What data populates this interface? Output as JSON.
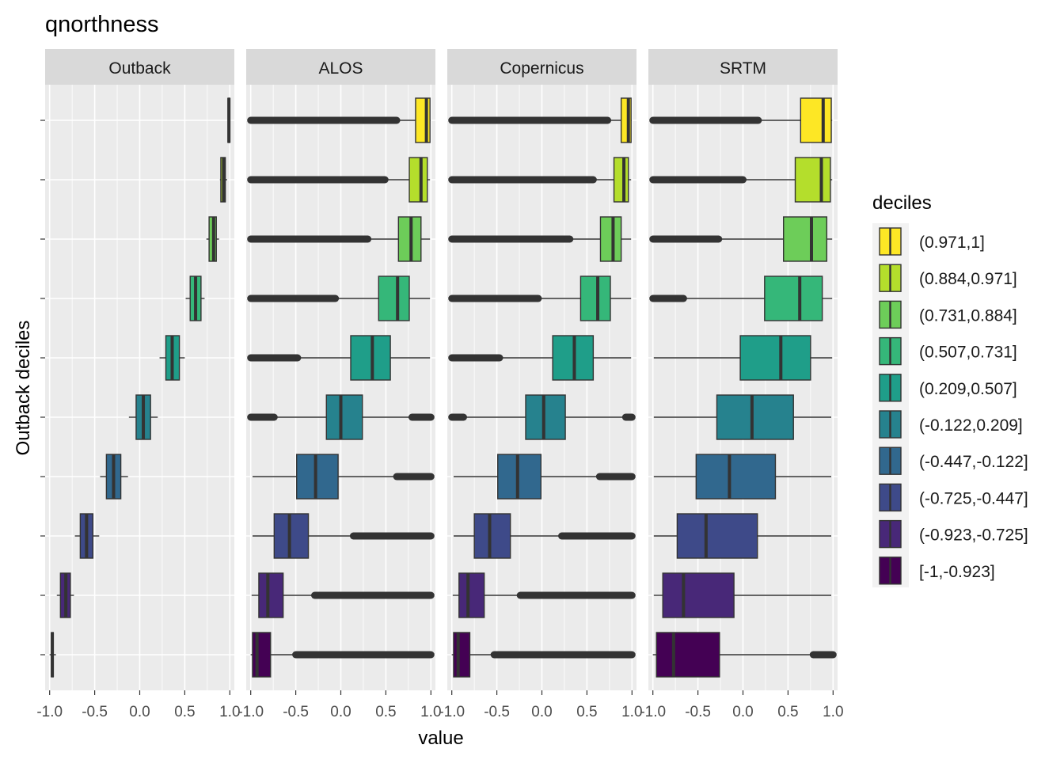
{
  "chart_data": {
    "type": "boxplot",
    "title": "qnorthness",
    "xlabel": "value",
    "ylabel": "Outback deciles",
    "xlim": [
      -1.05,
      1.05
    ],
    "x_ticks": [
      "-1.0",
      "-0.5",
      "0.0",
      "0.5",
      "1.0"
    ],
    "x_tick_values": [
      -1.0,
      -0.5,
      0.0,
      0.5,
      1.0
    ],
    "legend": {
      "title": "deciles",
      "position": "right",
      "entries": [
        {
          "label": "(0.971,1]",
          "color": "#FDE725"
        },
        {
          "label": "(0.884,0.971]",
          "color": "#B4DE2C"
        },
        {
          "label": "(0.731,0.884]",
          "color": "#6DCD59"
        },
        {
          "label": "(0.507,0.731]",
          "color": "#35B779"
        },
        {
          "label": "(0.209,0.507]",
          "color": "#1F9E89"
        },
        {
          "label": "(-0.122,0.209]",
          "color": "#26828E"
        },
        {
          "label": "(-0.447,-0.122]",
          "color": "#31688E"
        },
        {
          "label": "(-0.725,-0.447]",
          "color": "#3E4A89"
        },
        {
          "label": "(-0.923,-0.725]",
          "color": "#482878"
        },
        {
          "label": "[-1,-0.923]",
          "color": "#440154"
        }
      ]
    },
    "panels": [
      {
        "name": "Outback",
        "boxes": [
          {
            "decile": "[-1,-0.923]",
            "q1": -0.98,
            "median": -0.97,
            "q3": -0.96,
            "wmin": -1.0,
            "wmax": -0.93,
            "outliers": []
          },
          {
            "decile": "(-0.923,-0.725]",
            "q1": -0.88,
            "median": -0.82,
            "q3": -0.77,
            "wmin": -0.92,
            "wmax": -0.73,
            "outliers": []
          },
          {
            "decile": "(-0.725,-0.447]",
            "q1": -0.66,
            "median": -0.59,
            "q3": -0.52,
            "wmin": -0.72,
            "wmax": -0.45,
            "outliers": []
          },
          {
            "decile": "(-0.447,-0.122]",
            "q1": -0.37,
            "median": -0.29,
            "q3": -0.21,
            "wmin": -0.44,
            "wmax": -0.13,
            "outliers": []
          },
          {
            "decile": "(-0.122,0.209]",
            "q1": -0.04,
            "median": 0.04,
            "q3": 0.12,
            "wmin": -0.12,
            "wmax": 0.2,
            "outliers": []
          },
          {
            "decile": "(0.209,0.507]",
            "q1": 0.29,
            "median": 0.36,
            "q3": 0.44,
            "wmin": 0.22,
            "wmax": 0.5,
            "outliers": []
          },
          {
            "decile": "(0.507,0.731]",
            "q1": 0.56,
            "median": 0.62,
            "q3": 0.68,
            "wmin": 0.51,
            "wmax": 0.72,
            "outliers": []
          },
          {
            "decile": "(0.731,0.884]",
            "q1": 0.77,
            "median": 0.82,
            "q3": 0.85,
            "wmin": 0.74,
            "wmax": 0.88,
            "outliers": []
          },
          {
            "decile": "(0.884,0.971]",
            "q1": 0.9,
            "median": 0.93,
            "q3": 0.95,
            "wmin": 0.89,
            "wmax": 0.97,
            "outliers": []
          },
          {
            "decile": "(0.971,1]",
            "q1": 0.98,
            "median": 0.99,
            "q3": 1.0,
            "wmin": 0.975,
            "wmax": 1.0,
            "outliers": []
          }
        ]
      },
      {
        "name": "ALOS",
        "boxes": [
          {
            "decile": "[-1,-0.923]",
            "q1": -0.98,
            "median": -0.93,
            "q3": -0.78,
            "wmin": -1.0,
            "wmax": -0.5,
            "outliers": [
              [
                -0.5,
                1.0
              ]
            ]
          },
          {
            "decile": "(-0.923,-0.725]",
            "q1": -0.91,
            "median": -0.81,
            "q3": -0.64,
            "wmin": -0.99,
            "wmax": -0.29,
            "outliers": [
              [
                -0.29,
                1.0
              ]
            ]
          },
          {
            "decile": "(-0.725,-0.447]",
            "q1": -0.74,
            "median": -0.57,
            "q3": -0.36,
            "wmin": -0.98,
            "wmax": 0.14,
            "outliers": [
              [
                0.14,
                1.0
              ]
            ]
          },
          {
            "decile": "(-0.447,-0.122]",
            "q1": -0.49,
            "median": -0.28,
            "q3": -0.03,
            "wmin": -0.98,
            "wmax": 0.62,
            "outliers": [
              [
                0.62,
                1.0
              ]
            ]
          },
          {
            "decile": "(-0.122,0.209]",
            "q1": -0.16,
            "median": 0.0,
            "q3": 0.24,
            "wmin": -0.74,
            "wmax": 0.79,
            "outliers": [
              [
                -1.0,
                -0.74
              ],
              [
                0.79,
                1.0
              ]
            ]
          },
          {
            "decile": "(0.209,0.507]",
            "q1": 0.11,
            "median": 0.35,
            "q3": 0.55,
            "wmin": -0.48,
            "wmax": 0.99,
            "outliers": [
              [
                -1.0,
                -0.48
              ]
            ]
          },
          {
            "decile": "(0.507,0.731]",
            "q1": 0.42,
            "median": 0.63,
            "q3": 0.76,
            "wmin": -0.06,
            "wmax": 0.99,
            "outliers": [
              [
                -1.0,
                -0.06
              ]
            ]
          },
          {
            "decile": "(0.731,0.884]",
            "q1": 0.64,
            "median": 0.78,
            "q3": 0.89,
            "wmin": 0.3,
            "wmax": 0.99,
            "outliers": [
              [
                -1.0,
                0.3
              ]
            ]
          },
          {
            "decile": "(0.884,0.971]",
            "q1": 0.76,
            "median": 0.89,
            "q3": 0.96,
            "wmin": 0.49,
            "wmax": 0.99,
            "outliers": [
              [
                -1.0,
                0.49
              ]
            ]
          },
          {
            "decile": "(0.971,1]",
            "q1": 0.83,
            "median": 0.95,
            "q3": 0.99,
            "wmin": 0.62,
            "wmax": 0.995,
            "outliers": [
              [
                -1.0,
                0.62
              ]
            ]
          }
        ]
      },
      {
        "name": "Copernicus",
        "boxes": [
          {
            "decile": "[-1,-0.923]",
            "q1": -0.98,
            "median": -0.93,
            "q3": -0.8,
            "wmin": -1.0,
            "wmax": -0.53,
            "outliers": [
              [
                -0.53,
                1.0
              ]
            ]
          },
          {
            "decile": "(-0.923,-0.725]",
            "q1": -0.92,
            "median": -0.82,
            "q3": -0.64,
            "wmin": -0.99,
            "wmax": -0.24,
            "outliers": [
              [
                -0.24,
                1.0
              ]
            ]
          },
          {
            "decile": "(-0.725,-0.447]",
            "q1": -0.75,
            "median": -0.58,
            "q3": -0.35,
            "wmin": -0.98,
            "wmax": 0.22,
            "outliers": [
              [
                0.22,
                1.0
              ]
            ]
          },
          {
            "decile": "(-0.447,-0.122]",
            "q1": -0.49,
            "median": -0.27,
            "q3": -0.01,
            "wmin": -0.98,
            "wmax": 0.64,
            "outliers": [
              [
                0.64,
                1.0
              ]
            ]
          },
          {
            "decile": "(-0.122,0.209]",
            "q1": -0.18,
            "median": 0.02,
            "q3": 0.26,
            "wmin": -0.87,
            "wmax": 0.93,
            "outliers": [
              [
                -1.0,
                -0.87
              ],
              [
                0.93,
                1.0
              ]
            ]
          },
          {
            "decile": "(0.209,0.507]",
            "q1": 0.12,
            "median": 0.36,
            "q3": 0.57,
            "wmin": -0.47,
            "wmax": 0.99,
            "outliers": [
              [
                -1.0,
                -0.47
              ]
            ]
          },
          {
            "decile": "(0.507,0.731]",
            "q1": 0.43,
            "median": 0.62,
            "q3": 0.76,
            "wmin": -0.04,
            "wmax": 0.99,
            "outliers": [
              [
                -1.0,
                -0.04
              ]
            ]
          },
          {
            "decile": "(0.731,0.884]",
            "q1": 0.65,
            "median": 0.79,
            "q3": 0.88,
            "wmin": 0.31,
            "wmax": 0.99,
            "outliers": [
              [
                -1.0,
                0.31
              ]
            ]
          },
          {
            "decile": "(0.884,0.971]",
            "q1": 0.8,
            "median": 0.91,
            "q3": 0.96,
            "wmin": 0.57,
            "wmax": 0.99,
            "outliers": [
              [
                -1.0,
                0.57
              ]
            ]
          },
          {
            "decile": "(0.971,1]",
            "q1": 0.88,
            "median": 0.96,
            "q3": 0.99,
            "wmin": 0.73,
            "wmax": 0.995,
            "outliers": [
              [
                -1.0,
                0.73
              ]
            ]
          }
        ]
      },
      {
        "name": "SRTM",
        "boxes": [
          {
            "decile": "[-1,-0.923]",
            "q1": -0.96,
            "median": -0.77,
            "q3": -0.26,
            "wmin": -1.0,
            "wmax": 0.78,
            "outliers": [
              [
                0.78,
                1.0
              ]
            ]
          },
          {
            "decile": "(-0.923,-0.725]",
            "q1": -0.89,
            "median": -0.66,
            "q3": -0.1,
            "wmin": -0.99,
            "wmax": 0.98,
            "outliers": []
          },
          {
            "decile": "(-0.725,-0.447]",
            "q1": -0.73,
            "median": -0.41,
            "q3": 0.16,
            "wmin": -0.99,
            "wmax": 0.98,
            "outliers": []
          },
          {
            "decile": "(-0.447,-0.122]",
            "q1": -0.52,
            "median": -0.15,
            "q3": 0.36,
            "wmin": -0.99,
            "wmax": 0.98,
            "outliers": []
          },
          {
            "decile": "(-0.122,0.209]",
            "q1": -0.29,
            "median": 0.1,
            "q3": 0.56,
            "wmin": -0.99,
            "wmax": 0.98,
            "outliers": []
          },
          {
            "decile": "(0.209,0.507]",
            "q1": -0.03,
            "median": 0.42,
            "q3": 0.75,
            "wmin": -0.99,
            "wmax": 0.99,
            "outliers": []
          },
          {
            "decile": "(0.507,0.731]",
            "q1": 0.24,
            "median": 0.63,
            "q3": 0.88,
            "wmin": -0.66,
            "wmax": 0.99,
            "outliers": [
              [
                -1.0,
                -0.66
              ]
            ]
          },
          {
            "decile": "(0.731,0.884]",
            "q1": 0.45,
            "median": 0.76,
            "q3": 0.93,
            "wmin": -0.27,
            "wmax": 0.99,
            "outliers": [
              [
                -1.0,
                -0.27
              ]
            ]
          },
          {
            "decile": "(0.884,0.971]",
            "q1": 0.58,
            "median": 0.87,
            "q3": 0.97,
            "wmin": 0.0,
            "wmax": 0.99,
            "outliers": [
              [
                -1.0,
                0.0
              ]
            ]
          },
          {
            "decile": "(0.971,1]",
            "q1": 0.64,
            "median": 0.89,
            "q3": 0.98,
            "wmin": 0.17,
            "wmax": 0.99,
            "outliers": [
              [
                -1.0,
                0.17
              ]
            ]
          }
        ]
      }
    ]
  }
}
